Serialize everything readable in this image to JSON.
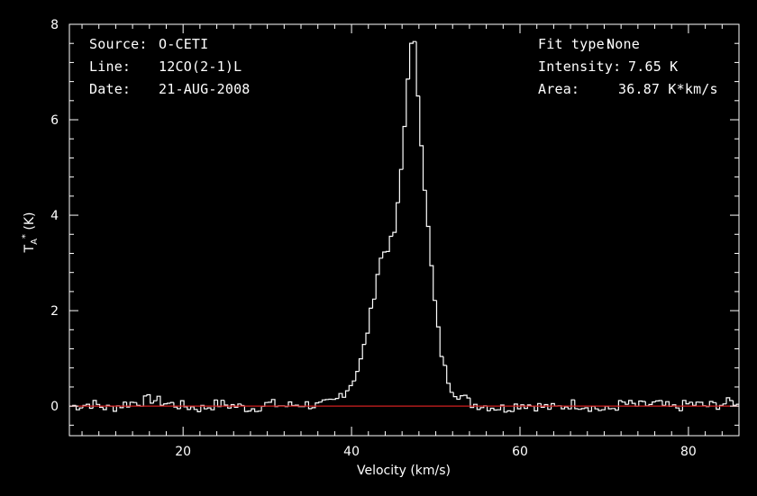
{
  "header": {
    "source_label": "Source:",
    "source_value": "O-CETI",
    "line_label": "Line:",
    "line_value": "12CO(2-1)L",
    "date_label": "Date:",
    "date_value": "21-AUG-2008",
    "fit_label": "Fit type:",
    "fit_value": "None",
    "intensity_label": "Intensity:",
    "intensity_value": "7.65 K",
    "area_label": "Area:",
    "area_value": "36.87 K*km/s"
  },
  "colors": {
    "background": "#000000",
    "axes": "#ffffff",
    "spectrum": "#ffffff",
    "baseline": "#d02020"
  },
  "chart_data": {
    "type": "line",
    "title": "",
    "xlabel": "Velocity (km/s)",
    "ylabel_main": "T",
    "ylabel_sub": "A",
    "ylabel_sup": "*",
    "ylabel_unit": " (K)",
    "xlim": [
      6.5,
      86
    ],
    "ylim": [
      -0.62,
      8.0
    ],
    "xticks": [
      20,
      40,
      60,
      80
    ],
    "yticks": [
      0,
      2,
      4,
      6,
      8
    ],
    "grid": false,
    "baseline_y": 0,
    "series": [
      {
        "style": "histogram",
        "x": [
          7,
          9,
          11,
          13,
          15,
          16,
          18,
          20,
          22,
          24,
          26,
          28,
          30,
          32,
          34,
          36,
          37,
          38,
          38.5,
          39,
          39.5,
          40,
          40.5,
          41,
          41.5,
          42,
          42.5,
          43,
          43.5,
          44,
          44.5,
          45,
          45.5,
          46,
          46.3,
          46.6,
          47,
          47.3,
          47.6,
          48,
          48.5,
          49,
          49.5,
          50,
          50.5,
          51,
          51.5,
          52,
          53,
          54,
          56,
          58,
          60,
          62,
          64,
          66,
          68,
          70,
          72,
          74,
          76,
          78,
          80,
          82,
          84,
          85.5
        ],
        "y": [
          0.0,
          0.05,
          -0.05,
          0.05,
          0.1,
          0.15,
          0.05,
          0.0,
          -0.05,
          0.05,
          0.0,
          -0.05,
          0.05,
          0.0,
          0.05,
          0.0,
          0.05,
          0.1,
          0.25,
          0.3,
          0.4,
          0.55,
          0.75,
          1.0,
          1.4,
          1.85,
          2.35,
          2.9,
          3.2,
          3.3,
          3.45,
          3.7,
          4.5,
          5.6,
          6.4,
          7.2,
          7.65,
          7.55,
          6.8,
          5.8,
          4.6,
          3.5,
          2.5,
          1.7,
          1.1,
          0.7,
          0.45,
          0.3,
          0.2,
          0.05,
          0.0,
          -0.05,
          0.05,
          0.0,
          -0.05,
          0.05,
          0.0,
          -0.1,
          0.05,
          0.0,
          0.05,
          -0.05,
          0.05,
          0.0,
          0.05,
          0.1
        ]
      }
    ]
  }
}
